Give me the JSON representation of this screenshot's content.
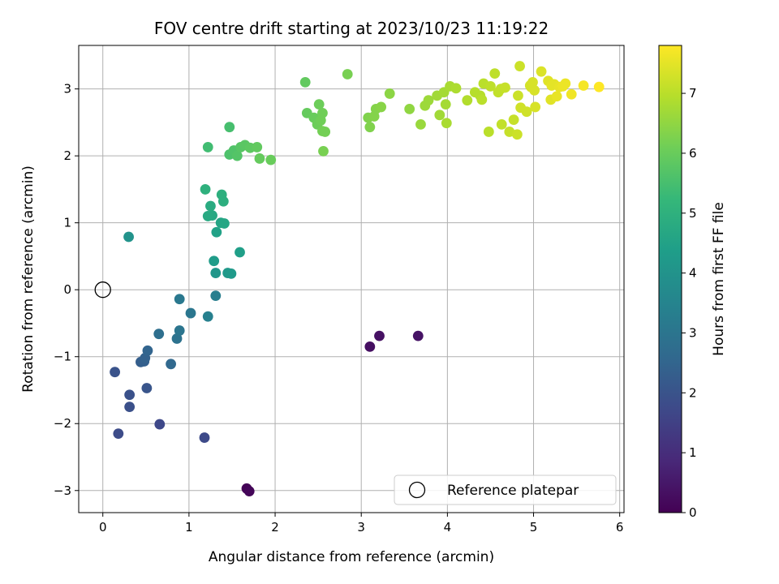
{
  "chart_data": {
    "type": "scatter",
    "title": "FOV centre drift starting at 2023/10/23 11:19:22",
    "xlabel": "Angular distance from reference (arcmin)",
    "ylabel": "Rotation from reference (arcmin)",
    "xlim": [
      -0.28,
      6.05
    ],
    "ylim": [
      -3.33,
      3.65
    ],
    "xticks": [
      0,
      1,
      2,
      3,
      4,
      5,
      6
    ],
    "yticks": [
      -3,
      -2,
      -1,
      0,
      1,
      2,
      3
    ],
    "grid": true,
    "colormap": "viridis",
    "colorbar": {
      "label": "Hours from first FF file",
      "range": [
        0,
        7.8
      ],
      "ticks": [
        0,
        1,
        2,
        3,
        4,
        5,
        6,
        7
      ]
    },
    "legend": {
      "position": "bottom-right",
      "entries": [
        "Reference platepar"
      ]
    },
    "reference_point": {
      "x": 0,
      "y": 0
    },
    "series": [
      {
        "values": [
          {
            "x": 1.67,
            "y": -2.97,
            "c": 0.05
          },
          {
            "x": 1.7,
            "y": -3.01,
            "c": 0.1
          },
          {
            "x": 3.1,
            "y": -0.85,
            "c": 0.3
          },
          {
            "x": 3.21,
            "y": -0.69,
            "c": 0.35
          },
          {
            "x": 3.66,
            "y": -0.69,
            "c": 0.4
          },
          {
            "x": 0.66,
            "y": -2.01,
            "c": 1.7
          },
          {
            "x": 1.18,
            "y": -2.21,
            "c": 1.75
          },
          {
            "x": 0.18,
            "y": -2.15,
            "c": 1.8
          },
          {
            "x": 0.31,
            "y": -1.75,
            "c": 1.9
          },
          {
            "x": 0.31,
            "y": -1.57,
            "c": 1.95
          },
          {
            "x": 0.14,
            "y": -1.23,
            "c": 2.0
          },
          {
            "x": 0.51,
            "y": -1.47,
            "c": 2.05
          },
          {
            "x": 0.44,
            "y": -1.08,
            "c": 2.3
          },
          {
            "x": 0.48,
            "y": -1.07,
            "c": 2.35
          },
          {
            "x": 0.49,
            "y": -1.02,
            "c": 2.4
          },
          {
            "x": 0.52,
            "y": -0.91,
            "c": 2.5
          },
          {
            "x": 0.79,
            "y": -1.11,
            "c": 2.6
          },
          {
            "x": 0.65,
            "y": -0.66,
            "c": 2.8
          },
          {
            "x": 0.86,
            "y": -0.73,
            "c": 2.9
          },
          {
            "x": 0.89,
            "y": -0.61,
            "c": 3.0
          },
          {
            "x": 1.02,
            "y": -0.35,
            "c": 3.05
          },
          {
            "x": 0.89,
            "y": -0.14,
            "c": 3.1
          },
          {
            "x": 1.31,
            "y": -0.09,
            "c": 3.3
          },
          {
            "x": 1.22,
            "y": -0.4,
            "c": 3.35
          },
          {
            "x": 0.3,
            "y": 0.79,
            "c": 4.0
          },
          {
            "x": 1.31,
            "y": 0.25,
            "c": 4.1
          },
          {
            "x": 1.45,
            "y": 0.25,
            "c": 4.2
          },
          {
            "x": 1.49,
            "y": 0.24,
            "c": 4.25
          },
          {
            "x": 1.29,
            "y": 0.43,
            "c": 4.3
          },
          {
            "x": 1.59,
            "y": 0.56,
            "c": 4.4
          },
          {
            "x": 1.32,
            "y": 0.86,
            "c": 4.5
          },
          {
            "x": 1.37,
            "y": 1.0,
            "c": 4.6
          },
          {
            "x": 1.41,
            "y": 0.99,
            "c": 4.65
          },
          {
            "x": 1.27,
            "y": 1.11,
            "c": 4.7
          },
          {
            "x": 1.22,
            "y": 1.1,
            "c": 4.75
          },
          {
            "x": 1.25,
            "y": 1.25,
            "c": 4.8
          },
          {
            "x": 1.4,
            "y": 1.32,
            "c": 4.9
          },
          {
            "x": 1.38,
            "y": 1.42,
            "c": 4.95
          },
          {
            "x": 1.19,
            "y": 1.5,
            "c": 5.0
          },
          {
            "x": 1.22,
            "y": 2.13,
            "c": 5.4
          },
          {
            "x": 1.47,
            "y": 2.43,
            "c": 5.5
          },
          {
            "x": 1.47,
            "y": 2.02,
            "c": 5.6
          },
          {
            "x": 1.52,
            "y": 2.08,
            "c": 5.65
          },
          {
            "x": 1.56,
            "y": 2.0,
            "c": 5.7
          },
          {
            "x": 1.6,
            "y": 2.13,
            "c": 5.75
          },
          {
            "x": 1.65,
            "y": 2.16,
            "c": 5.8
          },
          {
            "x": 1.71,
            "y": 2.12,
            "c": 5.85
          },
          {
            "x": 1.79,
            "y": 2.13,
            "c": 5.9
          },
          {
            "x": 1.82,
            "y": 1.96,
            "c": 5.95
          },
          {
            "x": 1.95,
            "y": 1.94,
            "c": 6.0
          },
          {
            "x": 2.35,
            "y": 3.1,
            "c": 5.9
          },
          {
            "x": 2.37,
            "y": 2.64,
            "c": 5.95
          },
          {
            "x": 2.45,
            "y": 2.57,
            "c": 6.0
          },
          {
            "x": 2.49,
            "y": 2.47,
            "c": 6.05
          },
          {
            "x": 2.51,
            "y": 2.77,
            "c": 6.05
          },
          {
            "x": 2.53,
            "y": 2.53,
            "c": 6.1
          },
          {
            "x": 2.55,
            "y": 2.64,
            "c": 6.1
          },
          {
            "x": 2.55,
            "y": 2.37,
            "c": 6.15
          },
          {
            "x": 2.58,
            "y": 2.36,
            "c": 6.15
          },
          {
            "x": 2.56,
            "y": 2.07,
            "c": 6.2
          },
          {
            "x": 2.84,
            "y": 3.22,
            "c": 6.2
          },
          {
            "x": 3.08,
            "y": 2.57,
            "c": 6.3
          },
          {
            "x": 3.1,
            "y": 2.43,
            "c": 6.3
          },
          {
            "x": 3.15,
            "y": 2.59,
            "c": 6.35
          },
          {
            "x": 3.17,
            "y": 2.7,
            "c": 6.35
          },
          {
            "x": 3.23,
            "y": 2.73,
            "c": 6.4
          },
          {
            "x": 3.33,
            "y": 2.93,
            "c": 6.45
          },
          {
            "x": 3.56,
            "y": 2.7,
            "c": 6.5
          },
          {
            "x": 3.69,
            "y": 2.47,
            "c": 6.6
          },
          {
            "x": 3.74,
            "y": 2.75,
            "c": 6.65
          },
          {
            "x": 3.78,
            "y": 2.83,
            "c": 6.65
          },
          {
            "x": 3.88,
            "y": 2.9,
            "c": 6.7
          },
          {
            "x": 3.91,
            "y": 2.61,
            "c": 6.7
          },
          {
            "x": 3.96,
            "y": 2.95,
            "c": 6.75
          },
          {
            "x": 3.98,
            "y": 2.77,
            "c": 6.75
          },
          {
            "x": 3.99,
            "y": 2.49,
            "c": 6.8
          },
          {
            "x": 4.03,
            "y": 3.04,
            "c": 6.8
          },
          {
            "x": 4.1,
            "y": 3.01,
            "c": 6.85
          },
          {
            "x": 4.23,
            "y": 2.83,
            "c": 6.9
          },
          {
            "x": 4.32,
            "y": 2.95,
            "c": 6.95
          },
          {
            "x": 4.38,
            "y": 2.9,
            "c": 6.95
          },
          {
            "x": 4.4,
            "y": 2.84,
            "c": 7.0
          },
          {
            "x": 4.42,
            "y": 3.08,
            "c": 7.0
          },
          {
            "x": 4.48,
            "y": 2.36,
            "c": 7.0
          },
          {
            "x": 4.5,
            "y": 3.04,
            "c": 7.05
          },
          {
            "x": 4.55,
            "y": 3.23,
            "c": 7.05
          },
          {
            "x": 4.59,
            "y": 2.95,
            "c": 7.1
          },
          {
            "x": 4.62,
            "y": 3.0,
            "c": 7.1
          },
          {
            "x": 4.63,
            "y": 2.47,
            "c": 7.1
          },
          {
            "x": 4.67,
            "y": 3.02,
            "c": 7.15
          },
          {
            "x": 4.72,
            "y": 2.36,
            "c": 7.15
          },
          {
            "x": 4.77,
            "y": 2.54,
            "c": 7.15
          },
          {
            "x": 4.81,
            "y": 2.32,
            "c": 7.2
          },
          {
            "x": 4.82,
            "y": 2.9,
            "c": 7.2
          },
          {
            "x": 4.84,
            "y": 3.34,
            "c": 7.2
          },
          {
            "x": 4.85,
            "y": 2.72,
            "c": 7.25
          },
          {
            "x": 4.92,
            "y": 2.66,
            "c": 7.25
          },
          {
            "x": 4.96,
            "y": 3.05,
            "c": 7.3
          },
          {
            "x": 4.97,
            "y": 3.03,
            "c": 7.3
          },
          {
            "x": 4.99,
            "y": 3.1,
            "c": 7.35
          },
          {
            "x": 5.01,
            "y": 2.98,
            "c": 7.35
          },
          {
            "x": 5.02,
            "y": 2.73,
            "c": 7.35
          },
          {
            "x": 5.09,
            "y": 3.26,
            "c": 7.4
          },
          {
            "x": 5.17,
            "y": 3.12,
            "c": 7.45
          },
          {
            "x": 5.2,
            "y": 2.84,
            "c": 7.45
          },
          {
            "x": 5.21,
            "y": 3.05,
            "c": 7.5
          },
          {
            "x": 5.24,
            "y": 3.07,
            "c": 7.5
          },
          {
            "x": 5.27,
            "y": 2.89,
            "c": 7.55
          },
          {
            "x": 5.3,
            "y": 3.03,
            "c": 7.55
          },
          {
            "x": 5.34,
            "y": 3.04,
            "c": 7.6
          },
          {
            "x": 5.37,
            "y": 3.08,
            "c": 7.6
          },
          {
            "x": 5.44,
            "y": 2.92,
            "c": 7.65
          },
          {
            "x": 5.58,
            "y": 3.05,
            "c": 7.7
          },
          {
            "x": 5.76,
            "y": 3.03,
            "c": 7.8
          }
        ]
      }
    ]
  }
}
